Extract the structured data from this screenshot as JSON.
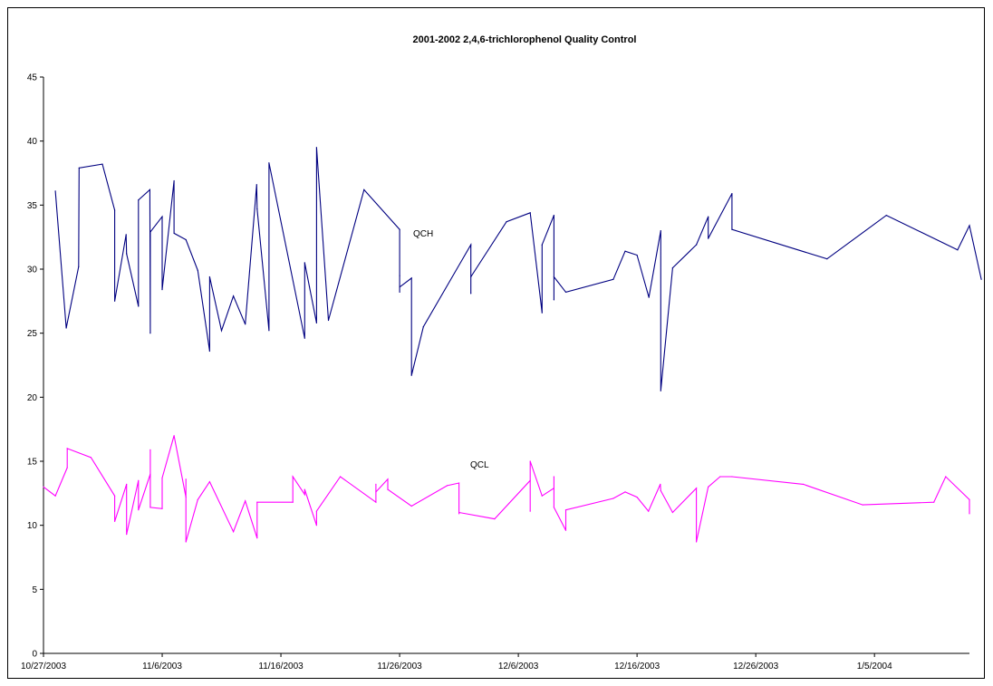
{
  "chart_data": {
    "type": "line",
    "title": "2001-2002 2,4,6-trichlorophenol Quality Control",
    "xlabel": "",
    "ylabel": "",
    "ylim": [
      0,
      45
    ],
    "xlim": [
      "10/27/2003",
      "1/13/2004"
    ],
    "y_ticks": [
      "0",
      "5",
      "10",
      "15",
      "20",
      "25",
      "30",
      "35",
      "40",
      "45"
    ],
    "x_ticks": [
      "10/27/2003",
      "11/6/2003",
      "11/16/2003",
      "11/26/2003",
      "12/6/2003",
      "12/16/2003",
      "12/26/2003",
      "1/5/2004"
    ],
    "grid": false,
    "series": [
      {
        "name": "QCH",
        "color": "#000080",
        "points": [
          [
            "10/28/2003 00:00",
            36.1
          ],
          [
            "10/28/2003 22:00",
            25.4
          ],
          [
            "10/29/2003 23:00",
            30.2
          ],
          [
            "10/30/2003 00:00",
            37.9
          ],
          [
            "10/31/2003 23:00",
            38.2
          ],
          [
            "11/2/2003 00:00",
            34.6
          ],
          [
            "11/2/2003 00:00",
            27.5
          ],
          [
            "11/2/2003 23:00",
            32.7
          ],
          [
            "11/3/2003 00:00",
            31.2
          ],
          [
            "11/4/2003 00:00",
            27.1
          ],
          [
            "11/4/2003 00:00",
            35.4
          ],
          [
            "11/4/2003 23:00",
            36.2
          ],
          [
            "11/5/2003 00:00",
            25.0
          ],
          [
            "11/5/2003 00:00",
            32.9
          ],
          [
            "11/6/2003 00:00",
            34.1
          ],
          [
            "11/6/2003 00:00",
            28.4
          ],
          [
            "11/7/2003 00:00",
            36.9
          ],
          [
            "11/7/2003 00:00",
            32.8
          ],
          [
            "11/8/2003 00:00",
            32.3
          ],
          [
            "11/9/2003 00:00",
            29.9
          ],
          [
            "11/10/2003 00:00",
            23.6
          ],
          [
            "11/10/2003 00:00",
            29.4
          ],
          [
            "11/11/2003 00:00",
            25.2
          ],
          [
            "11/12/2003 00:00",
            27.9
          ],
          [
            "11/13/2003 00:00",
            25.7
          ],
          [
            "11/13/2003 23:00",
            36.6
          ],
          [
            "11/14/2003 00:00",
            34.7
          ],
          [
            "11/15/2003 00:00",
            25.2
          ],
          [
            "11/15/2003 00:00",
            38.3
          ],
          [
            "11/18/2003 00:00",
            24.6
          ],
          [
            "11/18/2003 00:00",
            30.5
          ],
          [
            "11/19/2003 00:00",
            25.8
          ],
          [
            "11/19/2003 00:00",
            39.5
          ],
          [
            "11/20/2003 00:00",
            26.0
          ],
          [
            "11/23/2003 00:00",
            36.2
          ],
          [
            "11/26/2003 00:00",
            33.1
          ],
          [
            "11/26/2003 00:00",
            28.2
          ],
          [
            "11/26/2003 00:00",
            29.5
          ],
          [
            "11/26/2003 00:00",
            28.6
          ],
          [
            "11/27/2003 00:00",
            29.3
          ],
          [
            "11/27/2003 00:00",
            21.7
          ],
          [
            "11/28/2003 00:00",
            25.5
          ],
          [
            "12/2/2003 00:00",
            31.9
          ],
          [
            "12/2/2003 00:00",
            28.1
          ],
          [
            "12/2/2003 00:00",
            29.4
          ],
          [
            "12/5/2003 00:00",
            33.7
          ],
          [
            "12/7/2003 00:00",
            34.4
          ],
          [
            "12/8/2003 00:00",
            26.6
          ],
          [
            "12/8/2003 00:00",
            31.9
          ],
          [
            "12/9/2003 00:00",
            34.2
          ],
          [
            "12/9/2003 00:00",
            27.6
          ],
          [
            "12/9/2003 00:00",
            29.4
          ],
          [
            "12/10/2003 00:00",
            28.2
          ],
          [
            "12/14/2003 00:00",
            29.2
          ],
          [
            "12/15/2003 00:00",
            31.4
          ],
          [
            "12/16/2003 00:00",
            31.1
          ],
          [
            "12/17/2003 00:00",
            27.8
          ],
          [
            "12/18/2003 00:00",
            33.0
          ],
          [
            "12/18/2003 00:00",
            20.5
          ],
          [
            "12/19/2003 00:00",
            30.1
          ],
          [
            "12/21/2003 00:00",
            31.9
          ],
          [
            "12/22/2003 00:00",
            34.1
          ],
          [
            "12/22/2003 00:00",
            32.4
          ],
          [
            "12/24/2003 00:00",
            35.9
          ],
          [
            "12/24/2003 00:00",
            33.1
          ],
          [
            "1/1/2004 00:00",
            30.8
          ],
          [
            "1/6/2004 00:00",
            34.2
          ],
          [
            "1/12/2004 00:00",
            31.5
          ],
          [
            "1/13/2004 00:00",
            33.4
          ],
          [
            "1/14/2004 00:00",
            29.2
          ]
        ]
      },
      {
        "name": "QCL",
        "color": "#ff00ff",
        "points": [
          [
            "10/27/2003 00:00",
            13.0
          ],
          [
            "10/28/2003 00:00",
            12.3
          ],
          [
            "10/29/2003 00:00",
            14.5
          ],
          [
            "10/29/2003 00:00",
            16.0
          ],
          [
            "10/31/2003 00:00",
            15.3
          ],
          [
            "11/2/2003 00:00",
            12.3
          ],
          [
            "11/2/2003 00:00",
            10.3
          ],
          [
            "11/3/2003 00:00",
            13.2
          ],
          [
            "11/3/2003 00:00",
            9.3
          ],
          [
            "11/4/2003 00:00",
            13.5
          ],
          [
            "11/4/2003 00:00",
            11.2
          ],
          [
            "11/5/2003 00:00",
            14.0
          ],
          [
            "11/5/2003 00:00",
            15.9
          ],
          [
            "11/5/2003 00:00",
            11.4
          ],
          [
            "11/6/2003 00:00",
            11.3
          ],
          [
            "11/6/2003 00:00",
            13.7
          ],
          [
            "11/7/2003 00:00",
            17.0
          ],
          [
            "11/8/2003 00:00",
            12.2
          ],
          [
            "11/8/2003 00:00",
            13.6
          ],
          [
            "11/8/2003 00:00",
            8.7
          ],
          [
            "11/9/2003 00:00",
            12.0
          ],
          [
            "11/10/2003 00:00",
            13.4
          ],
          [
            "11/12/2003 00:00",
            9.5
          ],
          [
            "11/13/2003 00:00",
            11.9
          ],
          [
            "11/14/2003 00:00",
            9.0
          ],
          [
            "11/14/2003 00:00",
            11.8
          ],
          [
            "11/17/2003 00:00",
            11.8
          ],
          [
            "11/17/2003 00:00",
            13.8
          ],
          [
            "11/18/2003 00:00",
            12.4
          ],
          [
            "11/18/2003 00:00",
            12.8
          ],
          [
            "11/19/2003 00:00",
            10.0
          ],
          [
            "11/19/2003 00:00",
            11.1
          ],
          [
            "11/21/2003 00:00",
            13.8
          ],
          [
            "11/24/2003 00:00",
            11.8
          ],
          [
            "11/24/2003 00:00",
            13.2
          ],
          [
            "11/24/2003 00:00",
            12.6
          ],
          [
            "11/25/2003 00:00",
            13.6
          ],
          [
            "11/25/2003 00:00",
            12.8
          ],
          [
            "11/27/2003 00:00",
            11.5
          ],
          [
            "11/30/2003 00:00",
            13.1
          ],
          [
            "12/1/2003 00:00",
            13.3
          ],
          [
            "12/1/2003 00:00",
            10.9
          ],
          [
            "12/1/2003 00:00",
            11.0
          ],
          [
            "12/4/2003 00:00",
            10.5
          ],
          [
            "12/7/2003 00:00",
            13.5
          ],
          [
            "12/7/2003 00:00",
            11.1
          ],
          [
            "12/7/2003 00:00",
            15.0
          ],
          [
            "12/8/2003 00:00",
            12.3
          ],
          [
            "12/9/2003 00:00",
            12.9
          ],
          [
            "12/9/2003 00:00",
            13.8
          ],
          [
            "12/9/2003 00:00",
            11.4
          ],
          [
            "12/10/2003 00:00",
            9.6
          ],
          [
            "12/10/2003 00:00",
            11.2
          ],
          [
            "12/14/2003 00:00",
            12.1
          ],
          [
            "12/15/2003 00:00",
            12.6
          ],
          [
            "12/16/2003 00:00",
            12.2
          ],
          [
            "12/16/2003 23:00",
            11.1
          ],
          [
            "12/17/2003 23:00",
            13.2
          ],
          [
            "12/18/2003 00:00",
            12.7
          ],
          [
            "12/19/2003 00:00",
            11.0
          ],
          [
            "12/21/2003 00:00",
            12.9
          ],
          [
            "12/21/2003 00:00",
            8.7
          ],
          [
            "12/22/2003 00:00",
            13.0
          ],
          [
            "12/23/2003 00:00",
            13.8
          ],
          [
            "12/24/2003 00:00",
            13.8
          ],
          [
            "12/30/2003 00:00",
            13.2
          ],
          [
            "1/4/2004 00:00",
            11.6
          ],
          [
            "1/10/2004 00:00",
            11.8
          ],
          [
            "1/11/2004 00:00",
            13.8
          ],
          [
            "1/13/2004 00:00",
            12.0
          ],
          [
            "1/13/2004 00:00",
            10.9
          ]
        ]
      }
    ]
  }
}
